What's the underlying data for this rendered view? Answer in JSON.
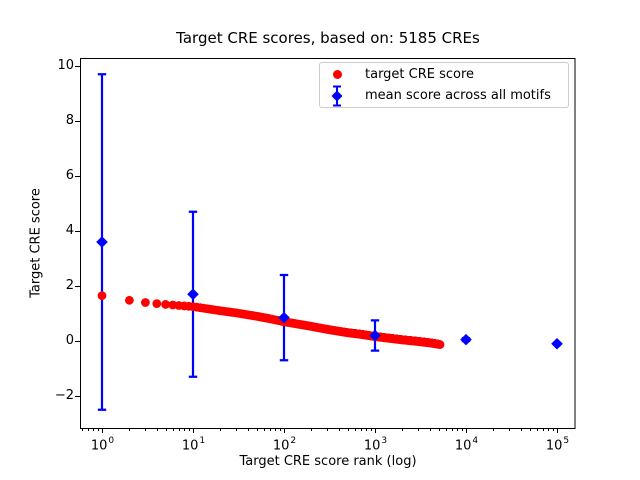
{
  "figure": {
    "title": "Target CRE scores, based on: 5185 CREs"
  },
  "axes": {
    "x": {
      "label": "Target CRE score rank (log)",
      "scale": "log",
      "tick_base": "10",
      "tick_exponents": [
        0,
        1,
        2,
        3,
        4,
        5
      ]
    },
    "y": {
      "label": "Target CRE score",
      "ticks": [
        -2,
        0,
        2,
        4,
        6,
        8,
        10
      ]
    }
  },
  "legend": {
    "items": [
      {
        "label": "target CRE score",
        "marker": "circle",
        "color": "#ff0000"
      },
      {
        "label": "mean score across all motifs",
        "marker": "diamond",
        "color": "#0000ff"
      }
    ]
  },
  "chart_data": {
    "type": "scatter",
    "title": "Target CRE scores, based on: 5185 CREs",
    "xlabel": "Target CRE score rank (log)",
    "ylabel": "Target CRE score",
    "x_scale": "log",
    "xlim_log10": [
      -0.25,
      5.25
    ],
    "ylim": [
      -3.1,
      10.4
    ],
    "grid": false,
    "legend_position": "upper right",
    "n_cres": 5185,
    "series": [
      {
        "name": "target CRE score",
        "marker": "circle",
        "color": "#ff0000",
        "n_points": 5185,
        "x_ranks": "integer ranks 1 to 5185",
        "trend_points": [
          [
            1,
            1.65
          ],
          [
            2,
            1.48
          ],
          [
            3,
            1.4
          ],
          [
            4,
            1.36
          ],
          [
            5,
            1.33
          ],
          [
            7,
            1.29
          ],
          [
            10,
            1.25
          ],
          [
            20,
            1.1
          ],
          [
            30,
            1.02
          ],
          [
            50,
            0.9
          ],
          [
            70,
            0.81
          ],
          [
            100,
            0.7
          ],
          [
            200,
            0.53
          ],
          [
            300,
            0.42
          ],
          [
            500,
            0.3
          ],
          [
            700,
            0.24
          ],
          [
            1000,
            0.16
          ],
          [
            1500,
            0.09
          ],
          [
            2000,
            0.04
          ],
          [
            3000,
            -0.02
          ],
          [
            4000,
            -0.07
          ],
          [
            5185,
            -0.13
          ]
        ]
      },
      {
        "name": "mean score across all motifs",
        "marker": "diamond",
        "color": "#0000ff",
        "error_bars": true,
        "points": [
          {
            "rank": 1,
            "mean": 3.6,
            "lo": -2.5,
            "hi": 9.7
          },
          {
            "rank": 10,
            "mean": 1.7,
            "lo": -1.3,
            "hi": 4.7
          },
          {
            "rank": 100,
            "mean": 0.85,
            "lo": -0.7,
            "hi": 2.4
          },
          {
            "rank": 1000,
            "mean": 0.2,
            "lo": -0.35,
            "hi": 0.75
          },
          {
            "rank": 10000,
            "mean": 0.05,
            "lo": 0.0,
            "hi": 0.1
          },
          {
            "rank": 100000,
            "mean": -0.1,
            "lo": -0.13,
            "hi": -0.07
          }
        ]
      }
    ]
  }
}
